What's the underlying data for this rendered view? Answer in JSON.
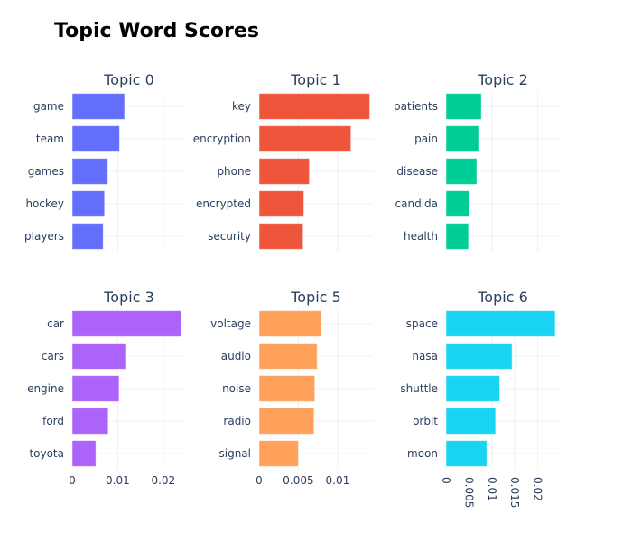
{
  "title": "Topic Word Scores",
  "chart_data": [
    {
      "type": "bar",
      "orientation": "horizontal",
      "title": "Topic 0",
      "color": "#636efa",
      "categories": [
        "game",
        "team",
        "games",
        "hockey",
        "players"
      ],
      "values": [
        0.0115,
        0.0104,
        0.0078,
        0.0071,
        0.0068
      ],
      "xlim": [
        0,
        0.025
      ],
      "xticks": []
    },
    {
      "type": "bar",
      "orientation": "horizontal",
      "title": "Topic 1",
      "color": "#ef553b",
      "categories": [
        "key",
        "encryption",
        "phone",
        "encrypted",
        "security"
      ],
      "values": [
        0.0141,
        0.0117,
        0.0064,
        0.0057,
        0.0056
      ],
      "xlim": [
        0,
        0.0145
      ],
      "xticks": []
    },
    {
      "type": "bar",
      "orientation": "horizontal",
      "title": "Topic 2",
      "color": "#00cc96",
      "categories": [
        "patients",
        "pain",
        "disease",
        "candida",
        "health"
      ],
      "values": [
        0.0077,
        0.0071,
        0.0067,
        0.0051,
        0.0049
      ],
      "xlim": [
        0,
        0.0248
      ],
      "xticks": []
    },
    {
      "type": "bar",
      "orientation": "horizontal",
      "title": "Topic 3",
      "color": "#ab63fa",
      "categories": [
        "car",
        "cars",
        "engine",
        "ford",
        "toyota"
      ],
      "values": [
        0.0239,
        0.0119,
        0.0103,
        0.0079,
        0.0052
      ],
      "xlim": [
        0,
        0.025
      ],
      "xticks": [
        "0",
        "0.01",
        "0.02"
      ],
      "xtick_values": [
        0,
        0.01,
        0.02
      ]
    },
    {
      "type": "bar",
      "orientation": "horizontal",
      "title": "Topic 5",
      "color": "#ffa15a",
      "categories": [
        "voltage",
        "audio",
        "noise",
        "radio",
        "signal"
      ],
      "values": [
        0.0079,
        0.0074,
        0.0071,
        0.007,
        0.005
      ],
      "xlim": [
        0,
        0.0145
      ],
      "xticks": [
        "0",
        "0.005",
        "0.01"
      ],
      "xtick_values": [
        0,
        0.005,
        0.01
      ]
    },
    {
      "type": "bar",
      "orientation": "horizontal",
      "title": "Topic 6",
      "color": "#19d3f3",
      "categories": [
        "space",
        "nasa",
        "shuttle",
        "orbit",
        "moon"
      ],
      "values": [
        0.0238,
        0.0144,
        0.0117,
        0.0108,
        0.0089
      ],
      "xlim": [
        0,
        0.0248
      ],
      "xticks": [
        "0",
        "0.005",
        "0.01",
        "0.015",
        "0.02"
      ],
      "xtick_values": [
        0,
        0.005,
        0.01,
        0.015,
        0.02
      ],
      "xtick_rotation": "vertical"
    }
  ]
}
